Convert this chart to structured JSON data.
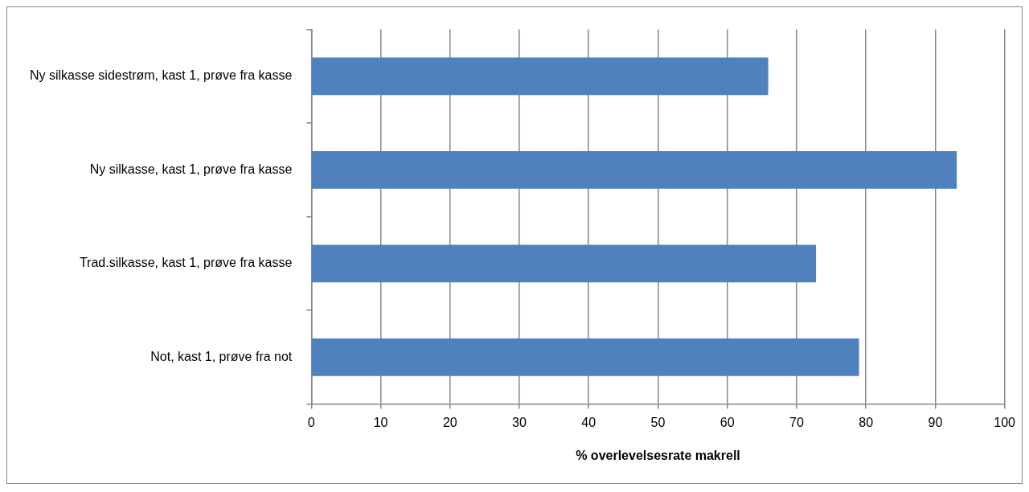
{
  "chart_data": {
    "type": "bar",
    "orientation": "horizontal",
    "xlabel": "% overlevelsesrate makrell",
    "categories": [
      "Ny silkasse sidestrøm, kast 1, prøve fra kasse",
      "Ny silkasse, kast 1, prøve fra kasse",
      "Trad.silkasse, kast 1, prøve fra kasse",
      "Not, kast 1, prøve fra not"
    ],
    "values": [
      65.9,
      93.1,
      72.8,
      79.0
    ],
    "color": "#4f81bd",
    "xlim": [
      0,
      100
    ],
    "xticks": [
      0,
      10,
      20,
      30,
      40,
      50,
      60,
      70,
      80,
      90,
      100
    ],
    "grid": "x",
    "legend": false
  }
}
